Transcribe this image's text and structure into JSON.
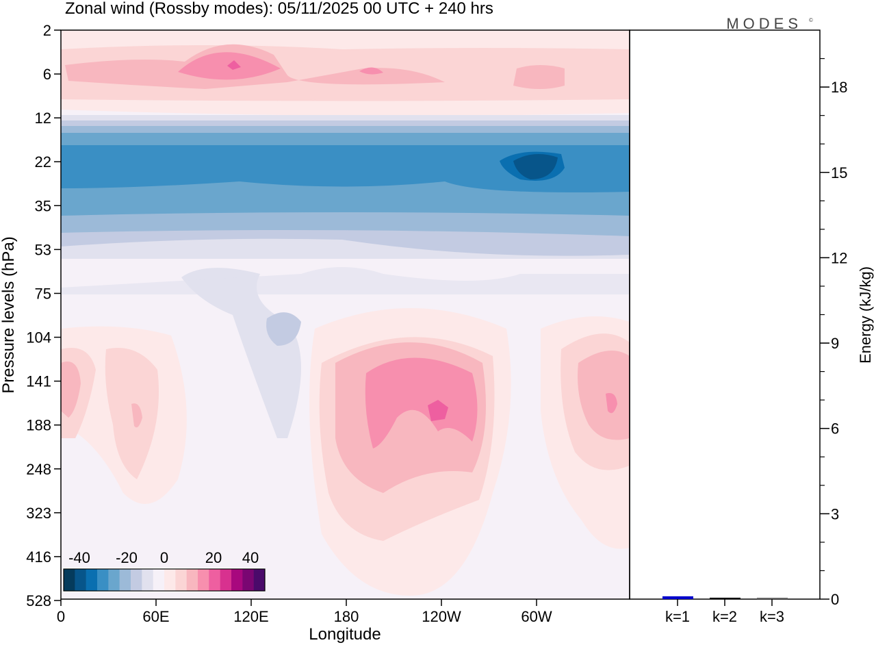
{
  "chart_data": [
    {
      "type": "heatmap",
      "title": "Zonal wind (Rossby modes):  05/11/2025  00 UTC  + 240 hrs",
      "xlabel": "Longitude",
      "ylabel": "Pressure levels (hPa)",
      "x_ticks": [
        "0",
        "60E",
        "120E",
        "180",
        "120W",
        "60W"
      ],
      "y_ticks": [
        "2",
        "6",
        "12",
        "22",
        "35",
        "53",
        "75",
        "104",
        "141",
        "188",
        "248",
        "323",
        "416",
        "528"
      ],
      "colorbar": {
        "tick_labels": [
          "-40",
          "-20",
          "0",
          "20",
          "40"
        ],
        "range": [
          -40,
          40
        ],
        "colors": [
          "#053b5c",
          "#07558a",
          "#0a6fb0",
          "#3a8fc4",
          "#6aa6cd",
          "#9cbad8",
          "#c3cbe2",
          "#e1e1ee",
          "#f6f1f8",
          "#fde9e9",
          "#fbd5d5",
          "#f8b7bf",
          "#f78fae",
          "#ee5fa0",
          "#d8318f",
          "#a8087e",
          "#7a0672",
          "#4a0a6a"
        ]
      },
      "logo": "MODES©"
    },
    {
      "type": "bar",
      "categories": [
        "k=1",
        "k=2",
        "k=3"
      ],
      "values": [
        0.1,
        0.05,
        0.02
      ],
      "colors": [
        "#0000cc",
        "#000000",
        "#666666"
      ],
      "ylabel": "Energy (kJ/kg)",
      "y_ticks": [
        "0",
        "3",
        "6",
        "9",
        "12",
        "15",
        "18"
      ],
      "ylim": [
        0,
        20
      ]
    }
  ]
}
